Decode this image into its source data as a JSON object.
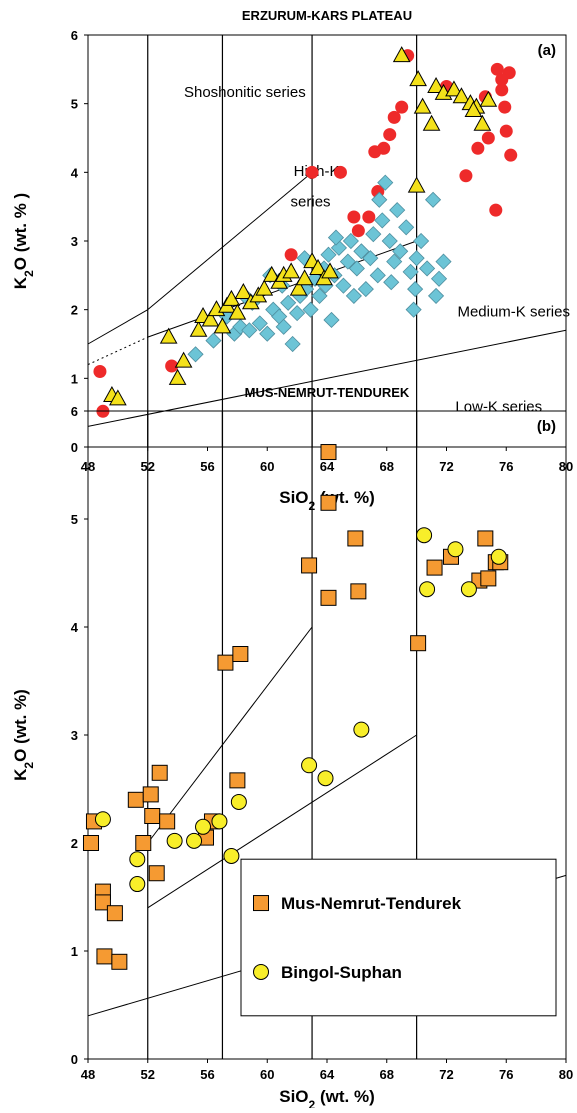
{
  "chart_data": [
    {
      "type": "scatter",
      "title": "ERZURUM-KARS PLATEAU",
      "panel_label": "(a)",
      "xlabel_main": "SiO",
      "xlabel_sub": "2",
      "xlabel_rest": " (wt. %)",
      "ylabel_main": "K",
      "ylabel_sub": "2",
      "ylabel_rest": "O (wt. % )",
      "xlim": [
        48,
        80
      ],
      "ylim": [
        0,
        6
      ],
      "xticks": [
        "48",
        "52",
        "56",
        "60",
        "64",
        "68",
        "72",
        "76",
        "80"
      ],
      "yticks": [
        "0",
        "1",
        "2",
        "3",
        "4",
        "5",
        "6"
      ],
      "vertical_lines_x": [
        52,
        57,
        63,
        70
      ],
      "annotations": [
        {
          "text": "Shoshonitic series",
          "x": 58.5,
          "y": 5.1
        },
        {
          "text": "High-K",
          "x": 63.3,
          "y": 3.95
        },
        {
          "text": "series",
          "x": 62.9,
          "y": 3.5
        },
        {
          "text": "Medium-K series",
          "x": 76.5,
          "y": 1.9
        },
        {
          "text": "Low-K series",
          "x": 75.5,
          "y": 0.52
        }
      ],
      "boundary_lines": [
        {
          "name": "low-medium",
          "points": [
            [
              48,
              0.3
            ],
            [
              80,
              1.7
            ]
          ],
          "style": "solid"
        },
        {
          "name": "medium-high",
          "points": [
            [
              48,
              1.2
            ],
            [
              52,
              1.6
            ]
          ],
          "style": "dotted"
        },
        {
          "name": "medium-high",
          "points": [
            [
              52,
              1.6
            ],
            [
              70,
              3.0
            ]
          ],
          "style": "solid"
        },
        {
          "name": "high-shoshonitic",
          "points": [
            [
              48,
              1.5
            ],
            [
              52,
              2.0
            ]
          ],
          "style": "solid"
        },
        {
          "name": "high-shoshonitic",
          "points": [
            [
              52,
              2.0
            ],
            [
              63,
              4.0
            ]
          ],
          "style": "solid"
        }
      ],
      "series": [
        {
          "marker": "circle",
          "color": "#ee2a2a",
          "points": [
            [
              48.8,
              1.1
            ],
            [
              49.0,
              0.52
            ],
            [
              53.6,
              1.18
            ],
            [
              61.6,
              2.8
            ],
            [
              63.0,
              4.0
            ],
            [
              64.9,
              4.0
            ],
            [
              65.8,
              3.35
            ],
            [
              66.1,
              3.15
            ],
            [
              66.8,
              3.35
            ],
            [
              67.4,
              3.72
            ],
            [
              67.2,
              4.3
            ],
            [
              67.8,
              4.35
            ],
            [
              68.2,
              4.55
            ],
            [
              68.5,
              4.8
            ],
            [
              69.0,
              4.95
            ],
            [
              69.4,
              5.7
            ],
            [
              72.0,
              5.25
            ],
            [
              73.3,
              3.95
            ],
            [
              74.1,
              4.35
            ],
            [
              74.8,
              4.5
            ],
            [
              75.3,
              3.45
            ],
            [
              75.4,
              5.5
            ],
            [
              75.7,
              5.2
            ],
            [
              75.9,
              4.95
            ],
            [
              76.0,
              4.6
            ],
            [
              76.3,
              4.25
            ],
            [
              76.2,
              5.45
            ],
            [
              75.7,
              5.35
            ],
            [
              74.6,
              5.1
            ]
          ]
        },
        {
          "marker": "diamond",
          "color": "#6cc4d6",
          "points": [
            [
              55.2,
              1.35
            ],
            [
              56.4,
              1.55
            ],
            [
              57.3,
              1.9
            ],
            [
              57.8,
              1.65
            ],
            [
              58.2,
              1.75
            ],
            [
              58.8,
              1.7
            ],
            [
              59.5,
              1.8
            ],
            [
              60.0,
              1.65
            ],
            [
              60.4,
              2.0
            ],
            [
              60.8,
              1.9
            ],
            [
              61.1,
              1.75
            ],
            [
              61.4,
              2.1
            ],
            [
              61.7,
              1.5
            ],
            [
              62.0,
              1.95
            ],
            [
              62.2,
              2.2
            ],
            [
              62.6,
              2.3
            ],
            [
              62.9,
              2.0
            ],
            [
              63.2,
              2.45
            ],
            [
              63.5,
              2.2
            ],
            [
              63.8,
              2.6
            ],
            [
              64.1,
              2.8
            ],
            [
              64.3,
              1.85
            ],
            [
              64.5,
              2.5
            ],
            [
              64.8,
              2.9
            ],
            [
              65.1,
              2.35
            ],
            [
              65.4,
              2.7
            ],
            [
              65.6,
              3.0
            ],
            [
              66.0,
              2.6
            ],
            [
              66.3,
              2.85
            ],
            [
              66.6,
              2.3
            ],
            [
              66.9,
              2.75
            ],
            [
              67.1,
              3.1
            ],
            [
              67.4,
              2.5
            ],
            [
              67.7,
              3.3
            ],
            [
              67.9,
              3.85
            ],
            [
              68.2,
              3.0
            ],
            [
              68.5,
              2.7
            ],
            [
              68.7,
              3.45
            ],
            [
              68.9,
              2.85
            ],
            [
              69.3,
              3.2
            ],
            [
              69.6,
              2.55
            ],
            [
              69.9,
              2.3
            ],
            [
              70.3,
              3.0
            ],
            [
              70.7,
              2.6
            ],
            [
              71.1,
              3.6
            ],
            [
              71.5,
              2.45
            ],
            [
              71.8,
              2.7
            ],
            [
              71.3,
              2.2
            ],
            [
              69.8,
              2.0
            ],
            [
              68.3,
              2.4
            ],
            [
              63.9,
              2.35
            ],
            [
              62.5,
              2.75
            ],
            [
              61.0,
              2.35
            ],
            [
              59.0,
              2.1
            ],
            [
              58.5,
              2.2
            ],
            [
              64.6,
              3.05
            ],
            [
              67.5,
              3.6
            ],
            [
              60.2,
              2.5
            ],
            [
              65.8,
              2.2
            ],
            [
              70.0,
              2.75
            ]
          ]
        },
        {
          "marker": "triangle",
          "color": "#f4e11a",
          "points": [
            [
              49.6,
              0.75
            ],
            [
              50.0,
              0.7
            ],
            [
              53.4,
              1.6
            ],
            [
              54.0,
              1.0
            ],
            [
              54.4,
              1.25
            ],
            [
              55.4,
              1.7
            ],
            [
              55.7,
              1.9
            ],
            [
              56.2,
              1.85
            ],
            [
              56.6,
              2.0
            ],
            [
              57.0,
              1.75
            ],
            [
              57.3,
              2.05
            ],
            [
              57.6,
              2.15
            ],
            [
              58.0,
              1.95
            ],
            [
              58.4,
              2.25
            ],
            [
              58.9,
              2.1
            ],
            [
              59.4,
              2.2
            ],
            [
              59.8,
              2.3
            ],
            [
              60.3,
              2.5
            ],
            [
              60.8,
              2.4
            ],
            [
              61.1,
              2.5
            ],
            [
              61.6,
              2.55
            ],
            [
              62.1,
              2.3
            ],
            [
              62.5,
              2.45
            ],
            [
              63.0,
              2.7
            ],
            [
              63.4,
              2.6
            ],
            [
              63.8,
              2.45
            ],
            [
              64.2,
              2.55
            ],
            [
              69.0,
              5.7
            ],
            [
              70.1,
              5.35
            ],
            [
              70.4,
              4.95
            ],
            [
              70.0,
              3.8
            ],
            [
              71.0,
              4.7
            ],
            [
              71.3,
              5.25
            ],
            [
              71.8,
              5.15
            ],
            [
              72.5,
              5.2
            ],
            [
              73.0,
              5.1
            ],
            [
              73.6,
              5.0
            ],
            [
              74.0,
              4.95
            ],
            [
              74.4,
              4.7
            ],
            [
              74.8,
              5.05
            ],
            [
              73.8,
              4.9
            ]
          ]
        }
      ]
    },
    {
      "type": "scatter",
      "title": "MUS-NEMRUT-TENDUREK",
      "panel_label": "(b)",
      "xlabel_main": "SiO",
      "xlabel_sub": "2",
      "xlabel_rest": " (wt. %)",
      "ylabel_main": "K",
      "ylabel_sub": "2",
      "ylabel_rest": "O (wt. %)",
      "xlim": [
        48,
        80
      ],
      "ylim": [
        0,
        6
      ],
      "xticks": [
        "48",
        "52",
        "56",
        "60",
        "64",
        "68",
        "72",
        "76",
        "80"
      ],
      "yticks": [
        "0",
        "1",
        "2",
        "3",
        "4",
        "5",
        "6"
      ],
      "vertical_lines_x": [
        52,
        57,
        63,
        70
      ],
      "boundary_lines": [
        {
          "name": "low-medium",
          "points": [
            [
              48,
              0.4
            ],
            [
              80,
              1.7
            ]
          ],
          "style": "solid"
        },
        {
          "name": "medium-high",
          "points": [
            [
              52,
              1.4
            ],
            [
              70,
              3.0
            ]
          ],
          "style": "solid"
        },
        {
          "name": "high-shoshonitic",
          "points": [
            [
              52,
              2.0
            ],
            [
              63,
              4.0
            ]
          ],
          "style": "solid"
        }
      ],
      "legend": {
        "position": "bottom-right",
        "entries": [
          "Mus-Nemrut-Tendurek",
          "Bingol-Suphan"
        ]
      },
      "series": [
        {
          "name": "Mus-Nemrut-Tendurek",
          "marker": "square",
          "color": "#f59a32",
          "points": [
            [
              48.2,
              2.0
            ],
            [
              48.4,
              2.2
            ],
            [
              49.0,
              1.55
            ],
            [
              49.0,
              1.45
            ],
            [
              49.1,
              0.95
            ],
            [
              49.8,
              1.35
            ],
            [
              50.1,
              0.9
            ],
            [
              51.2,
              2.4
            ],
            [
              51.7,
              2.0
            ],
            [
              52.2,
              2.45
            ],
            [
              52.3,
              2.25
            ],
            [
              52.6,
              1.72
            ],
            [
              52.8,
              2.65
            ],
            [
              53.3,
              2.2
            ],
            [
              55.9,
              2.05
            ],
            [
              56.3,
              2.2
            ],
            [
              57.2,
              3.67
            ],
            [
              58.0,
              2.58
            ],
            [
              58.2,
              3.75
            ],
            [
              62.8,
              4.57
            ],
            [
              64.1,
              5.62
            ],
            [
              64.1,
              5.15
            ],
            [
              64.1,
              4.27
            ],
            [
              65.9,
              4.82
            ],
            [
              66.1,
              4.33
            ],
            [
              70.1,
              3.85
            ],
            [
              71.2,
              4.55
            ],
            [
              72.3,
              4.65
            ],
            [
              74.2,
              4.43
            ],
            [
              74.6,
              4.82
            ],
            [
              74.8,
              4.45
            ],
            [
              75.3,
              4.6
            ],
            [
              75.6,
              4.6
            ]
          ]
        },
        {
          "name": "Bingol-Suphan",
          "marker": "circle",
          "color": "#f8ee2a",
          "points": [
            [
              49.0,
              2.22
            ],
            [
              51.3,
              1.85
            ],
            [
              51.3,
              1.62
            ],
            [
              53.8,
              2.02
            ],
            [
              55.1,
              2.02
            ],
            [
              55.7,
              2.15
            ],
            [
              56.8,
              2.2
            ],
            [
              57.6,
              1.88
            ],
            [
              58.1,
              2.38
            ],
            [
              62.8,
              2.72
            ],
            [
              63.9,
              2.6
            ],
            [
              66.3,
              3.05
            ],
            [
              70.5,
              4.85
            ],
            [
              70.7,
              4.35
            ],
            [
              72.6,
              4.72
            ],
            [
              73.5,
              4.35
            ],
            [
              75.5,
              4.65
            ]
          ]
        }
      ]
    }
  ]
}
